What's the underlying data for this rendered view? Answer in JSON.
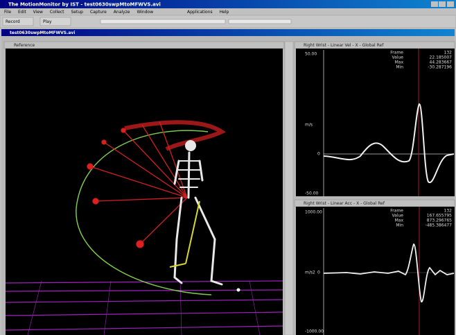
{
  "window_title": "The MotionMonitor by IST - test0630swpMtoMFWVS.avi",
  "menu": [
    "File",
    "Edit",
    "View",
    "Collect",
    "Setup",
    "Capture",
    "Analyze",
    "Window"
  ],
  "menu_right": [
    "Applications",
    "Help"
  ],
  "toolbar": [
    "Record",
    "Play"
  ],
  "document_title": "test0630swpMtoMFWVS.avi",
  "view_pane": {
    "title": "Reference"
  },
  "graph_top": {
    "title": "Right Wrist - Linear Vel - X - Global Ref",
    "y_top": "50.00",
    "y_unit": "m/s",
    "y_zero": "0",
    "y_bottom": "-50.00",
    "readout_labels": [
      "Frame",
      "Value",
      "Max",
      "Min"
    ],
    "readout_values": [
      "132",
      "22.185007",
      "44.283667",
      "-30.287196"
    ]
  },
  "graph_bottom": {
    "title": "Right Wrist - Linear Acc - X - Global Ref",
    "y_top": "1000.00",
    "y_unit": "m/s2",
    "y_zero": "0",
    "y_bottom": "-1000.00",
    "readout_labels": [
      "Frame",
      "Value",
      "Max",
      "Min"
    ],
    "readout_values": [
      "132",
      "167.655795",
      "873.296765",
      "-485.386477"
    ]
  }
}
